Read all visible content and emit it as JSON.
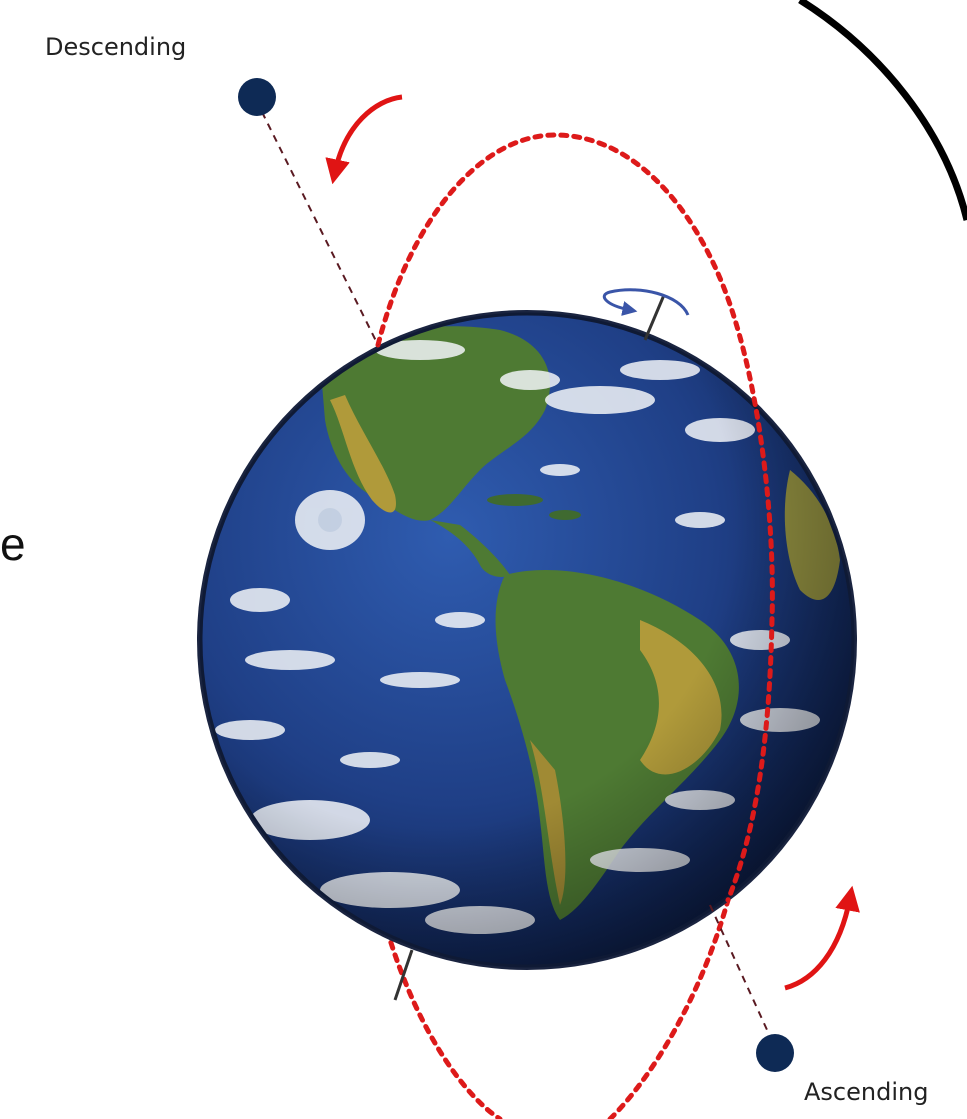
{
  "labels": {
    "descending": "Descending",
    "ascending": "Ascending",
    "cut_off_text": "e"
  },
  "colors": {
    "orbit": "#dd1a1a",
    "direction_arrow": "#e01414",
    "satellite": "#0e2a55",
    "ground_track": "#5a1a22",
    "rotation_arrow": "#3a55a8",
    "ocean": "#1f3f86",
    "land": "#4e7a33",
    "desert": "#b09a3a",
    "cloud": "#f2f5f8",
    "frame_arc": "#000000"
  },
  "icons": {
    "earth": "earth-globe-icon",
    "satellite": "satellite-dot-icon",
    "direction": "curved-arrow-icon",
    "rotation": "rotation-arrow-icon"
  }
}
